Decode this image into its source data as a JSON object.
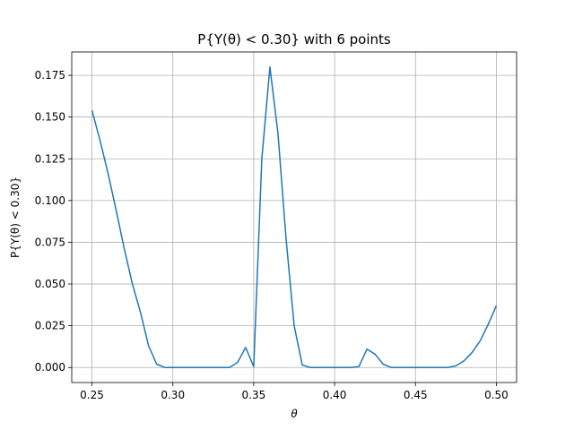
{
  "chart_data": {
    "type": "line",
    "title": "P{Y(θ) < 0.30} with 6 points",
    "xlabel": "θ",
    "ylabel": "P{Y(θ) < 0.30}",
    "xlim": [
      0.2375,
      0.5125
    ],
    "ylim": [
      -0.009,
      0.189
    ],
    "grid": true,
    "xticks": [
      0.25,
      0.3,
      0.35,
      0.4,
      0.45,
      0.5
    ],
    "xtick_labels": [
      "0.25",
      "0.30",
      "0.35",
      "0.40",
      "0.45",
      "0.50"
    ],
    "yticks": [
      0.0,
      0.025,
      0.05,
      0.075,
      0.1,
      0.125,
      0.15,
      0.175
    ],
    "ytick_labels": [
      "0.000",
      "0.025",
      "0.050",
      "0.075",
      "0.100",
      "0.125",
      "0.150",
      "0.175"
    ],
    "series": [
      {
        "color": "#1f77b4",
        "x": [
          0.25,
          0.255,
          0.26,
          0.265,
          0.27,
          0.275,
          0.28,
          0.285,
          0.29,
          0.295,
          0.3,
          0.305,
          0.31,
          0.315,
          0.32,
          0.325,
          0.33,
          0.335,
          0.34,
          0.345,
          0.35,
          0.355,
          0.36,
          0.365,
          0.37,
          0.375,
          0.38,
          0.385,
          0.39,
          0.395,
          0.4,
          0.405,
          0.41,
          0.415,
          0.42,
          0.425,
          0.43,
          0.435,
          0.44,
          0.445,
          0.45,
          0.455,
          0.46,
          0.465,
          0.47,
          0.475,
          0.48,
          0.485,
          0.49,
          0.495,
          0.5
        ],
        "y": [
          0.154,
          0.136,
          0.116,
          0.094,
          0.071,
          0.05,
          0.033,
          0.013,
          0.002,
          0.0,
          0.0,
          0.0,
          0.0,
          0.0,
          0.0,
          0.0,
          0.0,
          0.0,
          0.003,
          0.012,
          0.0005,
          0.125,
          0.18,
          0.14,
          0.077,
          0.025,
          0.0015,
          0.0,
          0.0,
          0.0,
          0.0,
          0.0,
          0.0,
          0.0005,
          0.011,
          0.008,
          0.002,
          0.0,
          0.0,
          0.0,
          0.0,
          0.0,
          0.0,
          0.0,
          0.0,
          0.001,
          0.004,
          0.009,
          0.016,
          0.026,
          0.037
        ]
      }
    ]
  }
}
